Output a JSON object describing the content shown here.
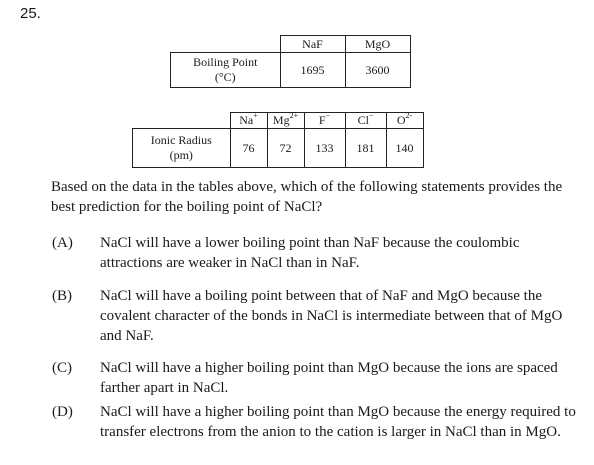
{
  "question_number": "25.",
  "boiling_point_table": {
    "headers": [
      "NaF",
      "MgO"
    ],
    "row_label_line1": "Boiling Point",
    "row_label_line2": "(°C)",
    "values": [
      "1695",
      "3600"
    ]
  },
  "ionic_radius_table": {
    "headers": [
      {
        "base": "Na",
        "sup": "+"
      },
      {
        "base": "Mg",
        "sup": "2+"
      },
      {
        "base": "F",
        "sup": "−"
      },
      {
        "base": "Cl",
        "sup": "−"
      },
      {
        "base": "O",
        "sup": "2-"
      }
    ],
    "row_label_line1": "Ionic Radius",
    "row_label_line2": "(pm)",
    "values": [
      "76",
      "72",
      "133",
      "181",
      "140"
    ]
  },
  "stem": "Based on the data in the tables above, which of the following statements provides the best prediction for the boiling point of NaCl?",
  "choices": [
    {
      "letter": "(A)",
      "text": "NaCl will have a lower boiling point than NaF because the coulombic attractions are weaker in NaCl than in NaF."
    },
    {
      "letter": "(B)",
      "text": "NaCl will have a boiling point between that of NaF and MgO because the covalent character of the bonds in NaCl is intermediate between that of MgO and NaF."
    },
    {
      "letter": "(C)",
      "text": "NaCl will have a higher boiling point than MgO because the ions are spaced farther apart in NaCl."
    },
    {
      "letter": "(D)",
      "text": "NaCl will have a higher boiling point than MgO because the energy required to transfer electrons from the anion to the cation is larger in NaCl than in MgO."
    }
  ]
}
